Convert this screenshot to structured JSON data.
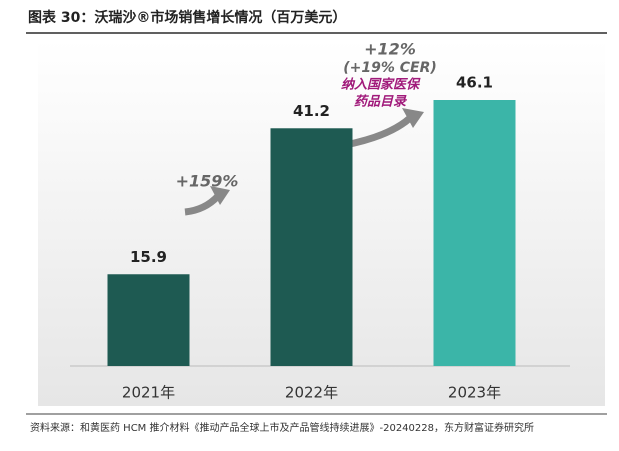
{
  "chart_data": {
    "type": "bar",
    "title": "图表 30：沃瑞沙®市场销售增长情况（百万美元）",
    "categories": [
      "2021年",
      "2022年",
      "2023年"
    ],
    "values": [
      15.9,
      41.2,
      46.1
    ],
    "colors": [
      "#1e5a52",
      "#1e5a52",
      "#3bb5a8"
    ],
    "annotations": [
      "+159%",
      "+12%",
      "(+19% CER)",
      "纳入国家医保",
      "药品目录"
    ],
    "source": "资料来源：和黄医药 HCM 推介材料《推动产品全球上市及产品管线持续进展》-20240228，东方财富证券研究所"
  }
}
